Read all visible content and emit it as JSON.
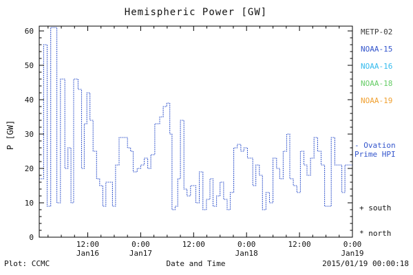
{
  "footer": {
    "plot_credit": "Plot: CCMC",
    "timestamp": "2015/01/19 00:00:18"
  },
  "legend": {
    "satellites": [
      {
        "label": "METP-02",
        "color": "#3a3a3a"
      },
      {
        "label": "NOAA-15",
        "color": "#3355cc"
      },
      {
        "label": "NOAA-16",
        "color": "#33bbee"
      },
      {
        "label": "NOAA-18",
        "color": "#66cc66"
      },
      {
        "label": "NOAA-19",
        "color": "#f0a030"
      }
    ],
    "ovation": {
      "line1": "- Ovation",
      "line2": "Prime HPI",
      "color": "#3355cc"
    },
    "markers": [
      {
        "symbol": "+",
        "label": "south"
      },
      {
        "symbol": "*",
        "label": "north"
      }
    ]
  },
  "chart_data": {
    "type": "line",
    "line_style": "dotted-step",
    "title": "Hemispheric Power [GW]",
    "xlabel": "Date and Time",
    "ylabel": "P [GW]",
    "ylim": [
      0,
      61.4
    ],
    "xlim": [
      0,
      71
    ],
    "x_unit": "hours from 2015 Jan16 ~01:00 UT",
    "grid": false,
    "yticks": [
      0,
      10,
      20,
      30,
      40,
      50,
      60
    ],
    "xticks": [
      {
        "t": 11,
        "time": "12:00",
        "date": "Jan16"
      },
      {
        "t": 23,
        "time": "0:00",
        "date": "Jan17"
      },
      {
        "t": 35,
        "time": "12:00",
        "date": ""
      },
      {
        "t": 47,
        "time": "0:00",
        "date": "Jan18"
      },
      {
        "t": 59,
        "time": "12:00",
        "date": ""
      },
      {
        "t": 71,
        "time": "0:00",
        "date": "Jan19"
      }
    ],
    "series": [
      {
        "name": "Ovation Prime HPI",
        "color": "#3355cc",
        "points": [
          [
            0,
            17
          ],
          [
            1,
            56
          ],
          [
            1.8,
            9
          ],
          [
            2.6,
            61
          ],
          [
            4,
            10
          ],
          [
            4.8,
            46
          ],
          [
            5.8,
            20
          ],
          [
            6.5,
            26
          ],
          [
            7.2,
            10
          ],
          [
            7.8,
            46
          ],
          [
            8.8,
            43
          ],
          [
            9.6,
            20
          ],
          [
            10.2,
            33
          ],
          [
            10.8,
            42
          ],
          [
            11.5,
            34
          ],
          [
            12.2,
            25
          ],
          [
            13,
            17
          ],
          [
            13.7,
            15
          ],
          [
            14.4,
            9
          ],
          [
            15.1,
            16
          ],
          [
            15.9,
            16
          ],
          [
            16.6,
            9
          ],
          [
            17.3,
            21
          ],
          [
            18.1,
            29
          ],
          [
            19.3,
            29
          ],
          [
            20,
            26
          ],
          [
            20.7,
            25
          ],
          [
            21.3,
            19
          ],
          [
            22.2,
            20
          ],
          [
            23,
            21
          ],
          [
            23.8,
            23
          ],
          [
            24.6,
            20
          ],
          [
            25.3,
            24
          ],
          [
            26.2,
            33
          ],
          [
            27.3,
            35
          ],
          [
            28.1,
            38
          ],
          [
            28.9,
            39
          ],
          [
            29.6,
            30
          ],
          [
            30.1,
            8
          ],
          [
            30.8,
            9
          ],
          [
            31.4,
            17
          ],
          [
            32,
            34
          ],
          [
            32.8,
            14
          ],
          [
            33.5,
            12
          ],
          [
            34.3,
            15
          ],
          [
            35.5,
            10
          ],
          [
            36.3,
            19
          ],
          [
            37.1,
            8
          ],
          [
            37.9,
            11
          ],
          [
            38.7,
            17
          ],
          [
            39.4,
            9
          ],
          [
            40.2,
            12
          ],
          [
            41,
            16
          ],
          [
            41.8,
            11
          ],
          [
            42.6,
            8
          ],
          [
            43.3,
            13
          ],
          [
            44.1,
            26
          ],
          [
            44.9,
            27
          ],
          [
            45.7,
            25
          ],
          [
            46.4,
            26
          ],
          [
            47.2,
            23
          ],
          [
            48.4,
            15
          ],
          [
            49.1,
            21
          ],
          [
            49.9,
            18
          ],
          [
            50.6,
            8
          ],
          [
            51.4,
            13
          ],
          [
            52.2,
            10
          ],
          [
            53,
            23
          ],
          [
            53.8,
            20
          ],
          [
            54.5,
            17
          ],
          [
            55.3,
            25
          ],
          [
            56.1,
            30
          ],
          [
            56.8,
            17
          ],
          [
            57.6,
            15
          ],
          [
            58.4,
            13
          ],
          [
            59.2,
            25
          ],
          [
            60,
            21
          ],
          [
            60.7,
            18
          ],
          [
            61.5,
            23
          ],
          [
            62.3,
            29
          ],
          [
            63.1,
            25
          ],
          [
            63.9,
            21
          ],
          [
            64.7,
            9
          ],
          [
            65.4,
            9
          ],
          [
            66.2,
            29
          ],
          [
            67,
            21
          ],
          [
            67.8,
            21
          ],
          [
            68.6,
            13
          ],
          [
            69.3,
            21
          ],
          [
            70.1,
            21
          ]
        ]
      }
    ]
  }
}
